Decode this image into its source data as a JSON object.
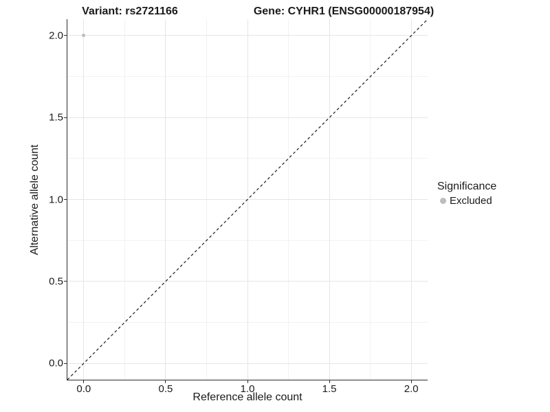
{
  "titles": {
    "variant": "Variant: rs2721166",
    "gene": "Gene: CYHR1 (ENSG00000187954)"
  },
  "chart_data": {
    "type": "scatter",
    "xlabel": "Reference allele count",
    "ylabel": "Alternative allele count",
    "xlim": [
      -0.1,
      2.1
    ],
    "ylim": [
      -0.1,
      2.1
    ],
    "x_ticks": [
      0.0,
      0.5,
      1.0,
      1.5,
      2.0
    ],
    "x_tick_labels": [
      "0.0",
      "0.5",
      "1.0",
      "1.5",
      "2.0"
    ],
    "y_ticks": [
      0.0,
      0.5,
      1.0,
      1.5,
      2.0
    ],
    "y_tick_labels": [
      "0.0",
      "0.5",
      "1.0",
      "1.5",
      "2.0"
    ],
    "minor_ticks": [
      0.25,
      0.75,
      1.25,
      1.75
    ],
    "grid": true,
    "legend_position": "right",
    "series": [
      {
        "name": "Excluded",
        "color": "#bdbdbd",
        "points": [
          {
            "x": 0.0,
            "y": 2.0
          }
        ]
      }
    ],
    "reference_line": {
      "style": "dashed",
      "from": {
        "x": -0.1,
        "y": -0.1
      },
      "to": {
        "x": 2.1,
        "y": 2.1
      },
      "color": "#1a1a1a"
    }
  },
  "legend": {
    "title": "Significance",
    "items": [
      {
        "label": "Excluded",
        "color": "#bdbdbd"
      }
    ]
  },
  "colors": {
    "background": "#ffffff",
    "grid_major": "#e5e5e5",
    "grid_minor": "#f2f2f2",
    "axis": "#2b2b2b",
    "text": "#1a1a1a"
  }
}
